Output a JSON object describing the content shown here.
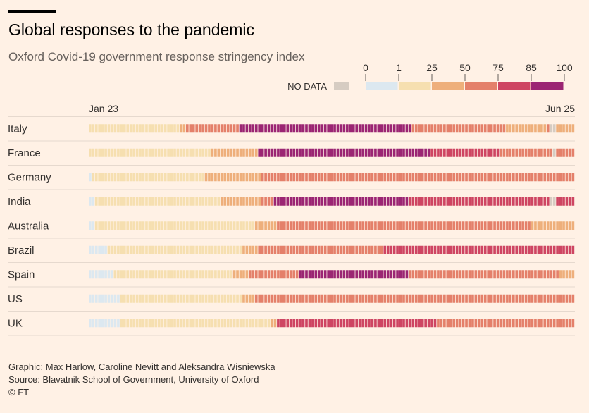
{
  "header": {
    "title": "Global responses to the pandemic",
    "subtitle": "Oxford Covid-19 government response stringency index"
  },
  "legend": {
    "no_data_label": "NO DATA",
    "no_data_color": "#D6CCC2",
    "ticks": [
      "0",
      "1",
      "25",
      "50",
      "75",
      "85",
      "100"
    ],
    "bins": [
      {
        "from": 0,
        "to": 1,
        "color": "#DCE8F0"
      },
      {
        "from": 1,
        "to": 25,
        "color": "#F6DFB0"
      },
      {
        "from": 25,
        "to": 50,
        "color": "#EEAF7B"
      },
      {
        "from": 50,
        "to": 75,
        "color": "#E4806A"
      },
      {
        "from": 75,
        "to": 85,
        "color": "#CE4562"
      },
      {
        "from": 85,
        "to": 100,
        "color": "#9B2573"
      }
    ]
  },
  "footer": {
    "graphic": "Graphic: Max Harlow, Caroline Nevitt and Aleksandra Wisniewska",
    "source": "Source: Blavatnik School of Government, University of Oxford",
    "copyright": "© FT"
  },
  "chart_data": {
    "type": "heatmap",
    "title": "Global responses to the pandemic",
    "subtitle": "Oxford Covid-19 government response stringency index",
    "x_start_label": "Jan 23",
    "x_end_label": "Jun 25",
    "total_days": 155,
    "value_scale": "stringency index 0-100",
    "rows": [
      {
        "country": "Italy",
        "segments": [
          {
            "days": 29,
            "value": 15
          },
          {
            "days": 2,
            "value": 30
          },
          {
            "days": 17,
            "value": 60
          },
          {
            "days": 55,
            "value": 93
          },
          {
            "days": 30,
            "value": 64
          },
          {
            "days": 13,
            "value": 40
          },
          {
            "days": 1,
            "value": 65
          },
          {
            "days": 2,
            "value": null
          },
          {
            "days": 6,
            "value": 40
          }
        ]
      },
      {
        "country": "France",
        "segments": [
          {
            "days": 39,
            "value": 15
          },
          {
            "days": 15,
            "value": 40
          },
          {
            "days": 55,
            "value": 90
          },
          {
            "days": 22,
            "value": 78
          },
          {
            "days": 17,
            "value": 64
          },
          {
            "days": 1,
            "value": null
          },
          {
            "days": 6,
            "value": 64
          }
        ]
      },
      {
        "country": "Germany",
        "segments": [
          {
            "days": 1,
            "value": 0
          },
          {
            "days": 36,
            "value": 15
          },
          {
            "days": 18,
            "value": 40
          },
          {
            "days": 100,
            "value": 63
          }
        ]
      },
      {
        "country": "India",
        "segments": [
          {
            "days": 2,
            "value": 0
          },
          {
            "days": 40,
            "value": 15
          },
          {
            "days": 13,
            "value": 40
          },
          {
            "days": 4,
            "value": 65
          },
          {
            "days": 43,
            "value": 95
          },
          {
            "days": 45,
            "value": 79
          },
          {
            "days": 2,
            "value": null
          },
          {
            "days": 6,
            "value": 79
          }
        ]
      },
      {
        "country": "Australia",
        "segments": [
          {
            "days": 2,
            "value": 0
          },
          {
            "days": 51,
            "value": 15
          },
          {
            "days": 7,
            "value": 40
          },
          {
            "days": 81,
            "value": 65
          },
          {
            "days": 14,
            "value": 40
          }
        ]
      },
      {
        "country": "Brazil",
        "segments": [
          {
            "days": 6,
            "value": 0
          },
          {
            "days": 43,
            "value": 15
          },
          {
            "days": 5,
            "value": 40
          },
          {
            "days": 40,
            "value": 67
          },
          {
            "days": 61,
            "value": 80
          }
        ]
      },
      {
        "country": "Spain",
        "segments": [
          {
            "days": 8,
            "value": 0
          },
          {
            "days": 38,
            "value": 15
          },
          {
            "days": 5,
            "value": 40
          },
          {
            "days": 16,
            "value": 64
          },
          {
            "days": 35,
            "value": 89
          },
          {
            "days": 48,
            "value": 70
          },
          {
            "days": 5,
            "value": 40
          }
        ]
      },
      {
        "country": "US",
        "segments": [
          {
            "days": 10,
            "value": 0
          },
          {
            "days": 39,
            "value": 15
          },
          {
            "days": 4,
            "value": 40
          },
          {
            "days": 102,
            "value": 68
          }
        ]
      },
      {
        "country": "UK",
        "segments": [
          {
            "days": 10,
            "value": 0
          },
          {
            "days": 48,
            "value": 15
          },
          {
            "days": 2,
            "value": 40
          },
          {
            "days": 51,
            "value": 77
          },
          {
            "days": 44,
            "value": 67
          }
        ]
      }
    ]
  }
}
